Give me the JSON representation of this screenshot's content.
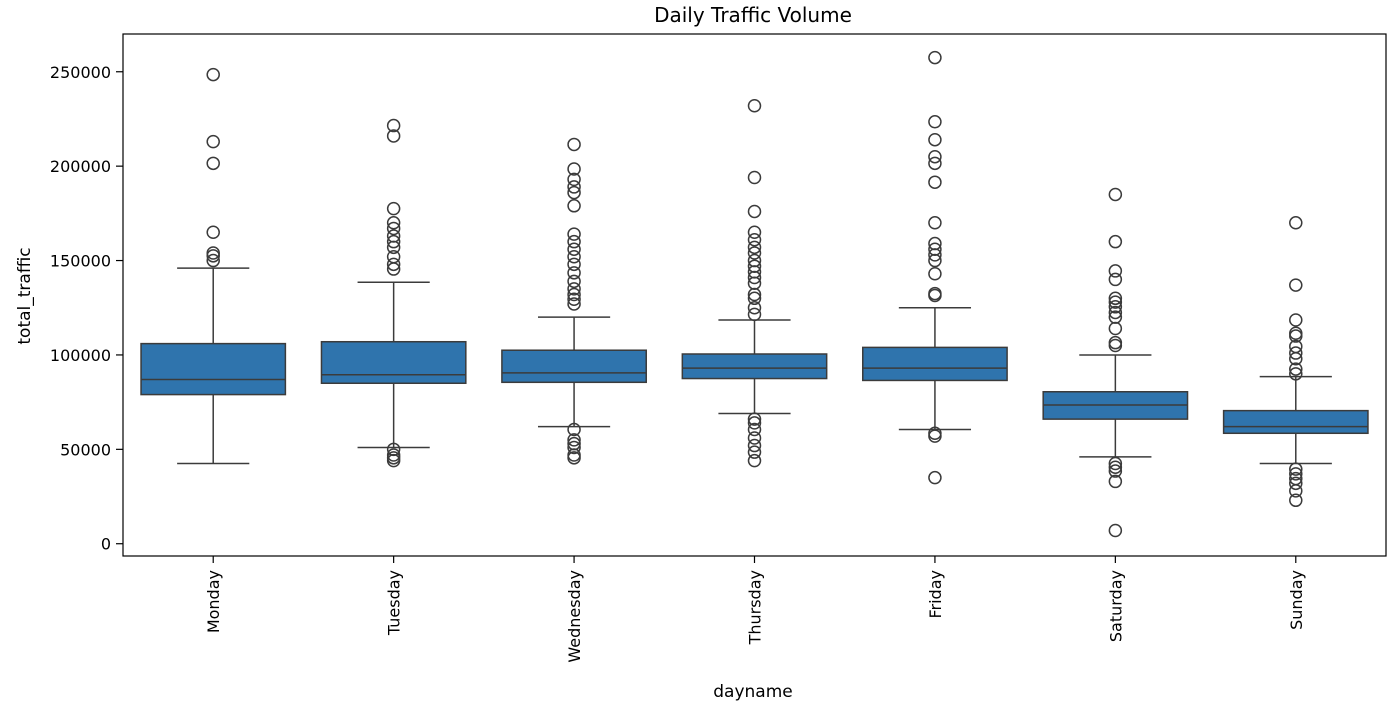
{
  "chart_data": {
    "type": "box",
    "title": "Daily Traffic Volume",
    "xlabel": "dayname",
    "ylabel": "total_traffic",
    "ylim": [
      -6500,
      270000
    ],
    "yticks": [
      0,
      50000,
      100000,
      150000,
      200000,
      250000
    ],
    "ytick_labels": [
      "0",
      "50000",
      "100000",
      "150000",
      "200000",
      "250000"
    ],
    "grid": false,
    "box_color": "#2f74ad",
    "edge_color": "#3b3b3b",
    "categories": [
      "Monday",
      "Tuesday",
      "Wednesday",
      "Thursday",
      "Friday",
      "Saturday",
      "Sunday"
    ],
    "boxes": [
      {
        "category": "Monday",
        "whisker_low": 42500,
        "q1": 79000,
        "median": 87000,
        "q3": 106000,
        "whisker_high": 146000,
        "outliers": [
          248500,
          213000,
          201500,
          165000,
          154000,
          152500,
          150000
        ]
      },
      {
        "category": "Tuesday",
        "whisker_low": 51000,
        "q1": 85000,
        "median": 89500,
        "q3": 107000,
        "whisker_high": 138500,
        "outliers": [
          221500,
          216000,
          177500,
          170000,
          167000,
          163000,
          160000,
          157000,
          152000,
          148000,
          145500,
          50000,
          47000,
          45500,
          44000
        ]
      },
      {
        "category": "Wednesday",
        "whisker_low": 62000,
        "q1": 85500,
        "median": 90500,
        "q3": 102500,
        "whisker_high": 120000,
        "outliers": [
          211500,
          198500,
          193000,
          189000,
          186000,
          179000,
          164000,
          160000,
          156000,
          152000,
          148000,
          143500,
          139000,
          135000,
          132000,
          129500,
          127000,
          60500,
          55000,
          53000,
          51000,
          47000,
          45500
        ]
      },
      {
        "category": "Thursday",
        "whisker_low": 69000,
        "q1": 87500,
        "median": 93000,
        "q3": 100500,
        "whisker_high": 118500,
        "outliers": [
          232000,
          194000,
          176000,
          165000,
          161000,
          157000,
          154000,
          150000,
          147000,
          144000,
          141000,
          138000,
          132000,
          130000,
          125000,
          121500,
          66000,
          64000,
          60500,
          56000,
          52000,
          48500,
          44000
        ]
      },
      {
        "category": "Friday",
        "whisker_low": 60500,
        "q1": 86500,
        "median": 93000,
        "q3": 104000,
        "whisker_high": 125000,
        "outliers": [
          257500,
          223500,
          214000,
          205000,
          201500,
          191500,
          170000,
          159000,
          156000,
          153000,
          150000,
          143000,
          132500,
          131500,
          58500,
          57000,
          35000
        ]
      },
      {
        "category": "Saturday",
        "whisker_low": 46000,
        "q1": 66000,
        "median": 73500,
        "q3": 80500,
        "whisker_high": 100000,
        "outliers": [
          185000,
          160000,
          144500,
          140000,
          130000,
          128000,
          125500,
          122500,
          120000,
          114000,
          106500,
          105000,
          42500,
          40500,
          38500,
          33000,
          7000
        ]
      },
      {
        "category": "Sunday",
        "whisker_low": 42500,
        "q1": 58500,
        "median": 62000,
        "q3": 70500,
        "whisker_high": 88500,
        "outliers": [
          170000,
          137000,
          118500,
          111500,
          110000,
          104500,
          101000,
          98000,
          92500,
          90000,
          39500,
          37000,
          34500,
          32000,
          28000,
          23000
        ]
      }
    ]
  }
}
